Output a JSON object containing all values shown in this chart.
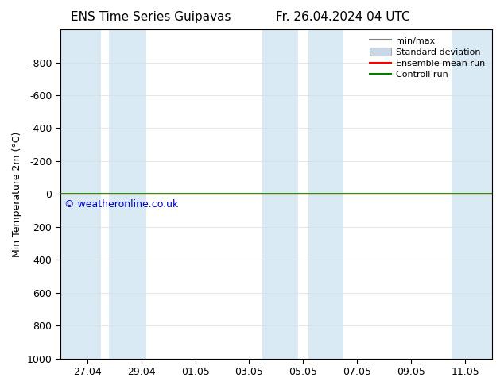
{
  "title_left": "ENS Time Series Guipavas",
  "title_right": "Fr. 26.04.2024 04 UTC",
  "ylabel": "Min Temperature 2m (°C)",
  "ylim_bottom": -1000,
  "ylim_top": 1000,
  "yticks": [
    -800,
    -600,
    -400,
    -200,
    0,
    200,
    400,
    600,
    800,
    1000
  ],
  "xtick_labels": [
    "27.04",
    "29.04",
    "01.05",
    "03.05",
    "05.05",
    "07.05",
    "09.05",
    "11.05"
  ],
  "xtick_positions": [
    1,
    3,
    5,
    7,
    9,
    11,
    13,
    15
  ],
  "xlim": [
    0,
    16
  ],
  "shaded_bands": [
    [
      0.0,
      1.5
    ],
    [
      1.8,
      3.2
    ],
    [
      7.5,
      8.8
    ],
    [
      9.2,
      10.5
    ],
    [
      14.5,
      16.0
    ]
  ],
  "shade_color": "#daeaf5",
  "control_run_color": "#008000",
  "ensemble_mean_color": "#ff0000",
  "minmax_line_color": "#808080",
  "std_fill_color": "#c8d8e8",
  "watermark": "© weatheronline.co.uk",
  "watermark_color": "#0000cc",
  "background_color": "#ffffff",
  "legend_items": [
    "min/max",
    "Standard deviation",
    "Ensemble mean run",
    "Controll run"
  ],
  "title_fontsize": 11,
  "axis_label_fontsize": 9,
  "tick_fontsize": 9
}
